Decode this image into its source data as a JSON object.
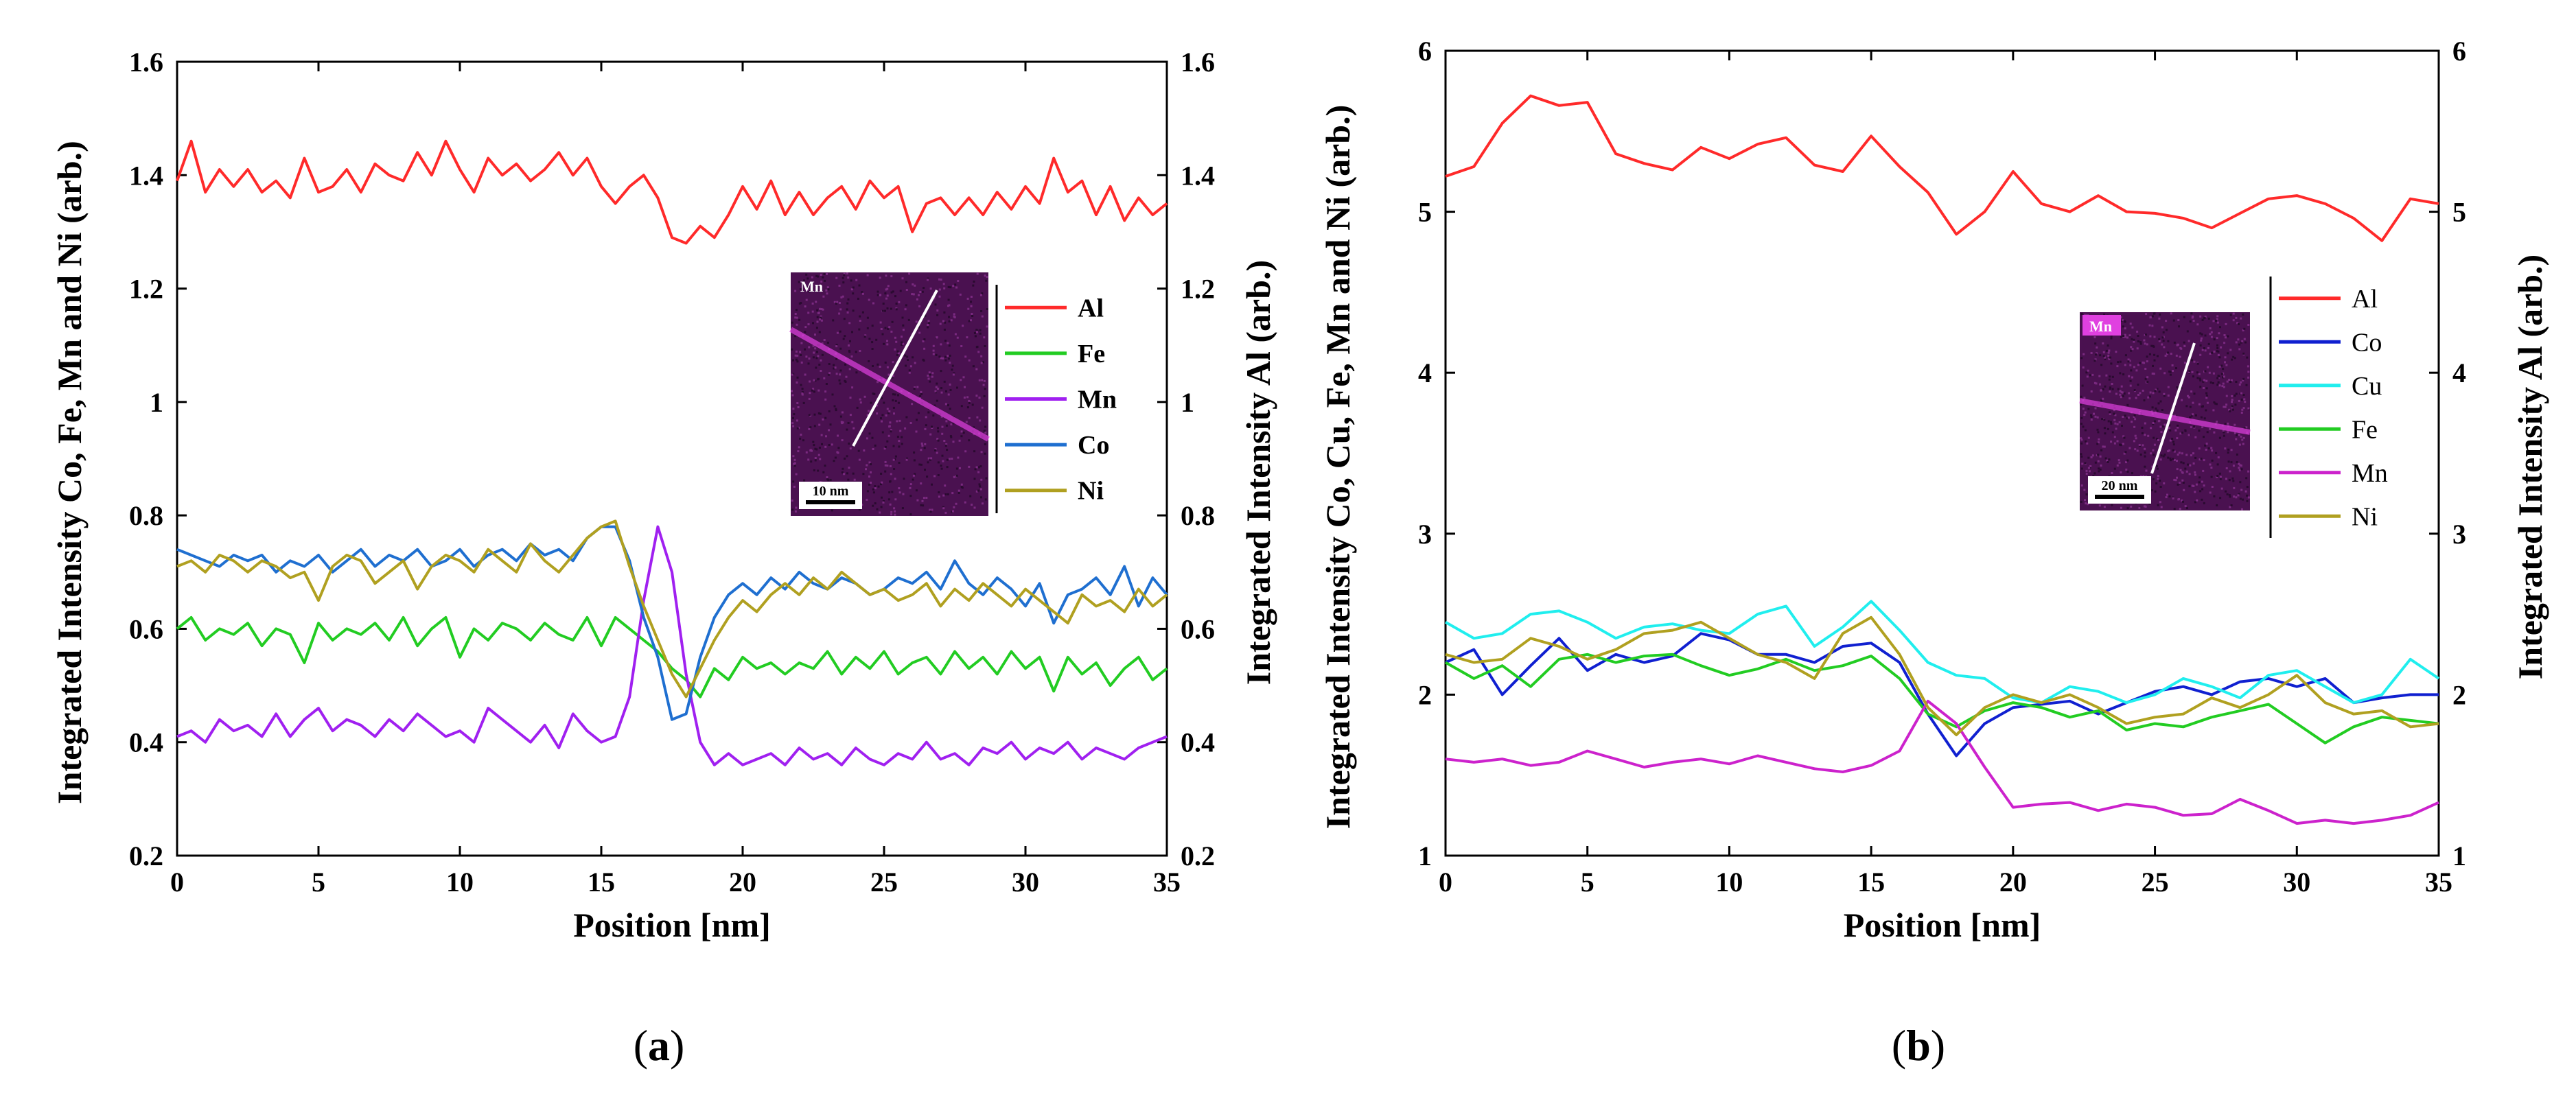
{
  "chart_data": [
    {
      "panel": "a",
      "type": "line",
      "caption_open": "(",
      "caption_letter": "a",
      "caption_close": ")",
      "xlabel": "Position [nm]",
      "ylabel_left": "Integrated Intensity Co, Fe, Mn and Ni (arb.)",
      "ylabel_right": "Integrated Intensity Al (arb.)",
      "xlim": [
        0,
        35
      ],
      "ylim": [
        0.2,
        1.6
      ],
      "xticks": [
        "0",
        "5",
        "10",
        "15",
        "20",
        "25",
        "30",
        "35"
      ],
      "yticks": [
        "0.2",
        "0.4",
        "0.6",
        "0.8",
        "1",
        "1.2",
        "1.4",
        "1.6"
      ],
      "inset_label": "Mn",
      "scalebar_label": "10 nm",
      "x": [
        0,
        0.5,
        1,
        1.5,
        2,
        2.5,
        3,
        3.5,
        4,
        4.5,
        5,
        5.5,
        6,
        6.5,
        7,
        7.5,
        8,
        8.5,
        9,
        9.5,
        10,
        10.5,
        11,
        11.5,
        12,
        12.5,
        13,
        13.5,
        14,
        14.5,
        15,
        15.5,
        16,
        16.5,
        17,
        17.5,
        18,
        18.5,
        19,
        19.5,
        20,
        20.5,
        21,
        21.5,
        22,
        22.5,
        23,
        23.5,
        24,
        24.5,
        25,
        25.5,
        26,
        26.5,
        27,
        27.5,
        28,
        28.5,
        29,
        29.5,
        30,
        30.5,
        31,
        31.5,
        32,
        32.5,
        33,
        33.5,
        34,
        34.5,
        35
      ],
      "series": [
        {
          "name": "Al",
          "color": "#ff2a2a",
          "values": [
            1.39,
            1.46,
            1.37,
            1.41,
            1.38,
            1.41,
            1.37,
            1.39,
            1.36,
            1.43,
            1.37,
            1.38,
            1.41,
            1.37,
            1.42,
            1.4,
            1.39,
            1.44,
            1.4,
            1.46,
            1.41,
            1.37,
            1.43,
            1.4,
            1.42,
            1.39,
            1.41,
            1.44,
            1.4,
            1.43,
            1.38,
            1.35,
            1.38,
            1.4,
            1.36,
            1.29,
            1.28,
            1.31,
            1.29,
            1.33,
            1.38,
            1.34,
            1.39,
            1.33,
            1.37,
            1.33,
            1.36,
            1.38,
            1.34,
            1.39,
            1.36,
            1.38,
            1.3,
            1.35,
            1.36,
            1.33,
            1.36,
            1.33,
            1.37,
            1.34,
            1.38,
            1.35,
            1.43,
            1.37,
            1.39,
            1.33,
            1.38,
            1.32,
            1.36,
            1.33,
            1.35
          ]
        },
        {
          "name": "Fe",
          "color": "#22cc22",
          "values": [
            0.6,
            0.62,
            0.58,
            0.6,
            0.59,
            0.61,
            0.57,
            0.6,
            0.59,
            0.54,
            0.61,
            0.58,
            0.6,
            0.59,
            0.61,
            0.58,
            0.62,
            0.57,
            0.6,
            0.62,
            0.55,
            0.6,
            0.58,
            0.61,
            0.6,
            0.58,
            0.61,
            0.59,
            0.58,
            0.62,
            0.57,
            0.62,
            0.6,
            0.58,
            0.56,
            0.53,
            0.51,
            0.48,
            0.53,
            0.51,
            0.55,
            0.53,
            0.54,
            0.52,
            0.54,
            0.53,
            0.56,
            0.52,
            0.55,
            0.53,
            0.56,
            0.52,
            0.54,
            0.55,
            0.52,
            0.56,
            0.53,
            0.55,
            0.52,
            0.56,
            0.53,
            0.55,
            0.49,
            0.55,
            0.52,
            0.54,
            0.5,
            0.53,
            0.55,
            0.51,
            0.53
          ]
        },
        {
          "name": "Mn",
          "color": "#a020f0",
          "values": [
            0.41,
            0.42,
            0.4,
            0.44,
            0.42,
            0.43,
            0.41,
            0.45,
            0.41,
            0.44,
            0.46,
            0.42,
            0.44,
            0.43,
            0.41,
            0.44,
            0.42,
            0.45,
            0.43,
            0.41,
            0.42,
            0.4,
            0.46,
            0.44,
            0.42,
            0.4,
            0.43,
            0.39,
            0.45,
            0.42,
            0.4,
            0.41,
            0.48,
            0.65,
            0.78,
            0.7,
            0.52,
            0.4,
            0.36,
            0.38,
            0.36,
            0.37,
            0.38,
            0.36,
            0.39,
            0.37,
            0.38,
            0.36,
            0.39,
            0.37,
            0.36,
            0.38,
            0.37,
            0.4,
            0.37,
            0.38,
            0.36,
            0.39,
            0.38,
            0.4,
            0.37,
            0.39,
            0.38,
            0.4,
            0.37,
            0.39,
            0.38,
            0.37,
            0.39,
            0.4,
            0.41
          ]
        },
        {
          "name": "Co",
          "color": "#1f6fd0",
          "values": [
            0.74,
            0.73,
            0.72,
            0.71,
            0.73,
            0.72,
            0.73,
            0.7,
            0.72,
            0.71,
            0.73,
            0.7,
            0.72,
            0.74,
            0.71,
            0.73,
            0.72,
            0.74,
            0.71,
            0.72,
            0.74,
            0.71,
            0.73,
            0.74,
            0.72,
            0.75,
            0.73,
            0.74,
            0.72,
            0.76,
            0.78,
            0.78,
            0.72,
            0.62,
            0.55,
            0.44,
            0.45,
            0.55,
            0.62,
            0.66,
            0.68,
            0.66,
            0.69,
            0.67,
            0.7,
            0.68,
            0.67,
            0.69,
            0.68,
            0.66,
            0.67,
            0.69,
            0.68,
            0.7,
            0.67,
            0.72,
            0.68,
            0.66,
            0.69,
            0.67,
            0.64,
            0.68,
            0.61,
            0.66,
            0.67,
            0.69,
            0.66,
            0.71,
            0.64,
            0.69,
            0.66
          ]
        },
        {
          "name": "Ni",
          "color": "#b0a020",
          "values": [
            0.71,
            0.72,
            0.7,
            0.73,
            0.72,
            0.7,
            0.72,
            0.71,
            0.69,
            0.7,
            0.65,
            0.71,
            0.73,
            0.72,
            0.68,
            0.7,
            0.72,
            0.67,
            0.71,
            0.73,
            0.72,
            0.7,
            0.74,
            0.72,
            0.7,
            0.75,
            0.72,
            0.7,
            0.73,
            0.76,
            0.78,
            0.79,
            0.71,
            0.64,
            0.58,
            0.52,
            0.48,
            0.53,
            0.58,
            0.62,
            0.65,
            0.63,
            0.66,
            0.68,
            0.66,
            0.69,
            0.67,
            0.7,
            0.68,
            0.66,
            0.67,
            0.65,
            0.66,
            0.68,
            0.64,
            0.67,
            0.65,
            0.68,
            0.66,
            0.64,
            0.67,
            0.65,
            0.63,
            0.61,
            0.66,
            0.64,
            0.65,
            0.63,
            0.67,
            0.64,
            0.66
          ]
        }
      ]
    },
    {
      "panel": "b",
      "type": "line",
      "caption_open": "(",
      "caption_letter": "b",
      "caption_close": ")",
      "xlabel": "Position [nm]",
      "ylabel_left": "Integrated Intensity Co, Cu, Fe, Mn and Ni (arb.)",
      "ylabel_right": "Integrated Intensity Al (arb.)",
      "xlim": [
        0,
        35
      ],
      "ylim": [
        1,
        6
      ],
      "xticks": [
        "0",
        "5",
        "10",
        "15",
        "20",
        "25",
        "30",
        "35"
      ],
      "yticks": [
        "1",
        "2",
        "3",
        "4",
        "5",
        "6"
      ],
      "inset_label": "Mn",
      "scalebar_label": "20 nm",
      "x": [
        0,
        1,
        2,
        3,
        4,
        5,
        6,
        7,
        8,
        9,
        10,
        11,
        12,
        13,
        14,
        15,
        16,
        17,
        18,
        19,
        20,
        21,
        22,
        23,
        24,
        25,
        26,
        27,
        28,
        29,
        30,
        31,
        32,
        33,
        34,
        35
      ],
      "series": [
        {
          "name": "Al",
          "color": "#ff2a2a",
          "values": [
            5.22,
            5.28,
            5.55,
            5.72,
            5.66,
            5.68,
            5.36,
            5.3,
            5.26,
            5.4,
            5.33,
            5.42,
            5.46,
            5.29,
            5.25,
            5.47,
            5.28,
            5.12,
            4.86,
            5.0,
            5.25,
            5.05,
            5.0,
            5.1,
            5.0,
            4.99,
            4.96,
            4.9,
            4.99,
            5.08,
            5.1,
            5.05,
            4.96,
            4.82,
            5.08,
            5.05
          ]
        },
        {
          "name": "Co",
          "color": "#1020d0",
          "values": [
            2.2,
            2.28,
            2.0,
            2.18,
            2.35,
            2.15,
            2.25,
            2.2,
            2.24,
            2.38,
            2.34,
            2.25,
            2.25,
            2.2,
            2.3,
            2.32,
            2.2,
            1.88,
            1.62,
            1.82,
            1.92,
            1.94,
            1.96,
            1.88,
            1.95,
            2.02,
            2.05,
            2.0,
            2.08,
            2.1,
            2.05,
            2.1,
            1.95,
            1.98,
            2.0,
            2.0
          ]
        },
        {
          "name": "Cu",
          "color": "#20eeee",
          "values": [
            2.45,
            2.35,
            2.38,
            2.5,
            2.52,
            2.45,
            2.35,
            2.42,
            2.44,
            2.4,
            2.38,
            2.5,
            2.55,
            2.3,
            2.42,
            2.58,
            2.4,
            2.2,
            2.12,
            2.1,
            1.98,
            1.95,
            2.05,
            2.02,
            1.95,
            2.0,
            2.1,
            2.05,
            1.98,
            2.12,
            2.15,
            2.05,
            1.95,
            2.0,
            2.22,
            2.1
          ]
        },
        {
          "name": "Fe",
          "color": "#22cc22",
          "values": [
            2.2,
            2.1,
            2.18,
            2.05,
            2.22,
            2.25,
            2.2,
            2.24,
            2.25,
            2.18,
            2.12,
            2.16,
            2.22,
            2.15,
            2.18,
            2.24,
            2.1,
            1.88,
            1.8,
            1.9,
            1.95,
            1.92,
            1.86,
            1.9,
            1.78,
            1.82,
            1.8,
            1.86,
            1.9,
            1.94,
            1.82,
            1.7,
            1.8,
            1.86,
            1.84,
            1.82
          ]
        },
        {
          "name": "Mn",
          "color": "#cc22cc",
          "values": [
            1.6,
            1.58,
            1.6,
            1.56,
            1.58,
            1.65,
            1.6,
            1.55,
            1.58,
            1.6,
            1.57,
            1.62,
            1.58,
            1.54,
            1.52,
            1.56,
            1.65,
            1.96,
            1.82,
            1.55,
            1.3,
            1.32,
            1.33,
            1.28,
            1.32,
            1.3,
            1.25,
            1.26,
            1.35,
            1.28,
            1.2,
            1.22,
            1.2,
            1.22,
            1.25,
            1.33
          ]
        },
        {
          "name": "Ni",
          "color": "#b0a020",
          "values": [
            2.25,
            2.2,
            2.22,
            2.35,
            2.3,
            2.22,
            2.28,
            2.38,
            2.4,
            2.45,
            2.35,
            2.25,
            2.2,
            2.1,
            2.38,
            2.48,
            2.25,
            1.92,
            1.75,
            1.92,
            2.0,
            1.95,
            2.0,
            1.92,
            1.82,
            1.86,
            1.88,
            1.98,
            1.92,
            2.0,
            2.12,
            1.95,
            1.88,
            1.9,
            1.8,
            1.82
          ]
        }
      ]
    }
  ]
}
